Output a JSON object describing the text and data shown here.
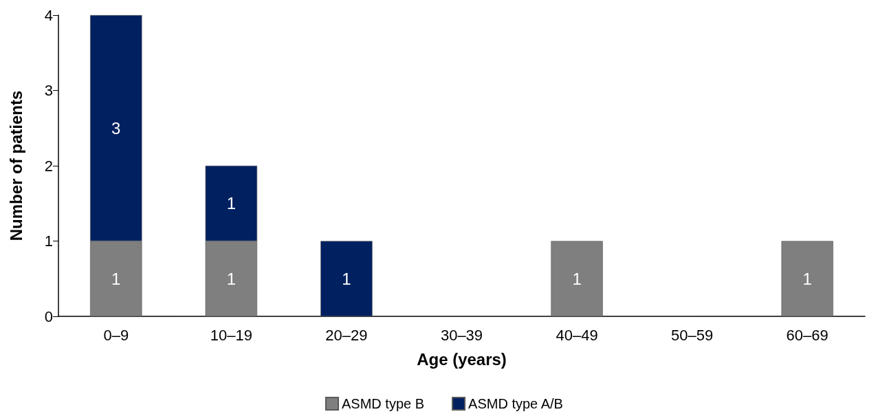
{
  "chart_data": {
    "type": "bar",
    "stacked": true,
    "xlabel": "Age (years)",
    "ylabel": "Number of patients",
    "categories": [
      "0–9",
      "10–19",
      "20–29",
      "30–39",
      "40–49",
      "50–59",
      "60–69"
    ],
    "series": [
      {
        "name": "ASMD type B",
        "color": "#7f7f7f",
        "values": [
          1,
          1,
          0,
          0,
          1,
          0,
          1
        ],
        "value_labels": [
          "1",
          "1",
          null,
          null,
          "1",
          null,
          "1"
        ]
      },
      {
        "name": "ASMD type A/B",
        "color": "#002060",
        "values": [
          3,
          1,
          1,
          0,
          0,
          0,
          0
        ],
        "value_labels": [
          "3",
          "1",
          "1",
          null,
          null,
          null,
          null
        ]
      }
    ],
    "ylim": [
      0,
      4
    ],
    "yticks": [
      0,
      1,
      2,
      3,
      4
    ],
    "grid": false,
    "legend": "bottom"
  }
}
